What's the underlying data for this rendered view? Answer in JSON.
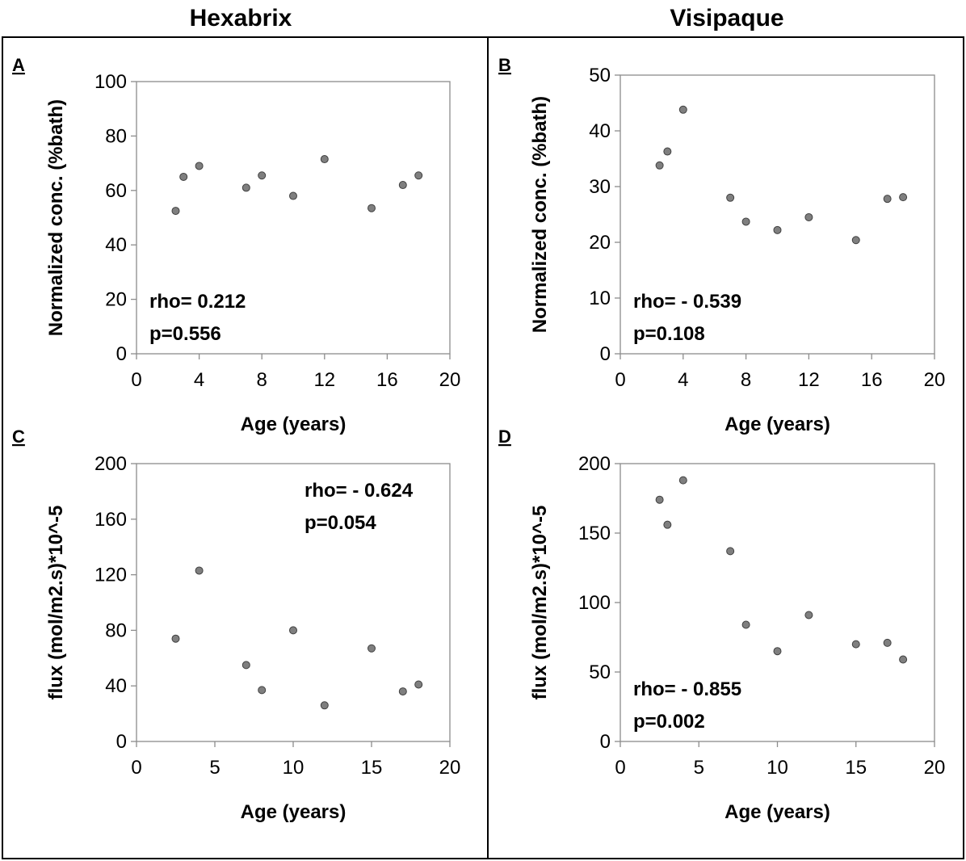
{
  "columns": [
    "Hexabrix",
    "Visipaque"
  ],
  "chart_data": [
    {
      "panel": "A",
      "type": "scatter",
      "xlabel": "Age (years)",
      "ylabel": "Normalized conc. (%bath)",
      "xlim": [
        0,
        20
      ],
      "ylim": [
        0,
        100
      ],
      "xticks": [
        0,
        4,
        8,
        12,
        16,
        20
      ],
      "yticks": [
        0,
        20,
        40,
        60,
        80,
        100
      ],
      "points": [
        [
          2.5,
          52.5
        ],
        [
          3,
          65
        ],
        [
          4,
          69
        ],
        [
          7,
          61
        ],
        [
          8,
          65.5
        ],
        [
          10,
          58
        ],
        [
          12,
          71.5
        ],
        [
          15,
          53.5
        ],
        [
          17,
          62
        ],
        [
          18,
          65.5
        ]
      ],
      "stats": [
        "rho= 0.212",
        "p=0.556"
      ],
      "stats_position": "bottom-left"
    },
    {
      "panel": "B",
      "type": "scatter",
      "xlabel": "Age (years)",
      "ylabel": "Normalized conc. (%bath)",
      "xlim": [
        0,
        20
      ],
      "ylim": [
        0,
        50
      ],
      "xticks": [
        0,
        4,
        8,
        12,
        16,
        20
      ],
      "yticks": [
        0,
        10,
        20,
        30,
        40,
        50
      ],
      "points": [
        [
          2.5,
          33.8
        ],
        [
          3,
          36.3
        ],
        [
          4,
          43.8
        ],
        [
          7,
          28
        ],
        [
          8,
          23.7
        ],
        [
          10,
          22.2
        ],
        [
          12,
          24.5
        ],
        [
          15,
          20.4
        ],
        [
          17,
          27.8
        ],
        [
          18,
          28.1
        ]
      ],
      "stats": [
        "rho= - 0.539",
        "p=0.108"
      ],
      "stats_position": "bottom-left"
    },
    {
      "panel": "C",
      "type": "scatter",
      "xlabel": "Age (years)",
      "ylabel": "flux (mol/m2.s)*10^-5",
      "xlim": [
        0,
        20
      ],
      "ylim": [
        0,
        200
      ],
      "xticks": [
        0,
        5,
        10,
        15,
        20
      ],
      "yticks": [
        0,
        40,
        80,
        120,
        160,
        200
      ],
      "points": [
        [
          2.5,
          74
        ],
        [
          4,
          123
        ],
        [
          7,
          55
        ],
        [
          8,
          37
        ],
        [
          10,
          80
        ],
        [
          12,
          26
        ],
        [
          15,
          67
        ],
        [
          17,
          36
        ],
        [
          18,
          41
        ]
      ],
      "stats": [
        "rho= - 0.624",
        "p=0.054"
      ],
      "stats_position": "top-right"
    },
    {
      "panel": "D",
      "type": "scatter",
      "xlabel": "Age (years)",
      "ylabel": "flux (mol/m2.s)*10^-5",
      "xlim": [
        0,
        20
      ],
      "ylim": [
        0,
        200
      ],
      "xticks": [
        0,
        5,
        10,
        15,
        20
      ],
      "yticks": [
        0,
        50,
        100,
        150,
        200
      ],
      "points": [
        [
          2.5,
          174
        ],
        [
          3,
          156
        ],
        [
          4,
          188
        ],
        [
          7,
          137
        ],
        [
          8,
          84
        ],
        [
          10,
          65
        ],
        [
          12,
          91
        ],
        [
          15,
          70
        ],
        [
          17,
          71
        ],
        [
          18,
          59
        ]
      ],
      "stats": [
        "rho= - 0.855",
        "p=0.002"
      ],
      "stats_position": "bottom-left"
    }
  ]
}
